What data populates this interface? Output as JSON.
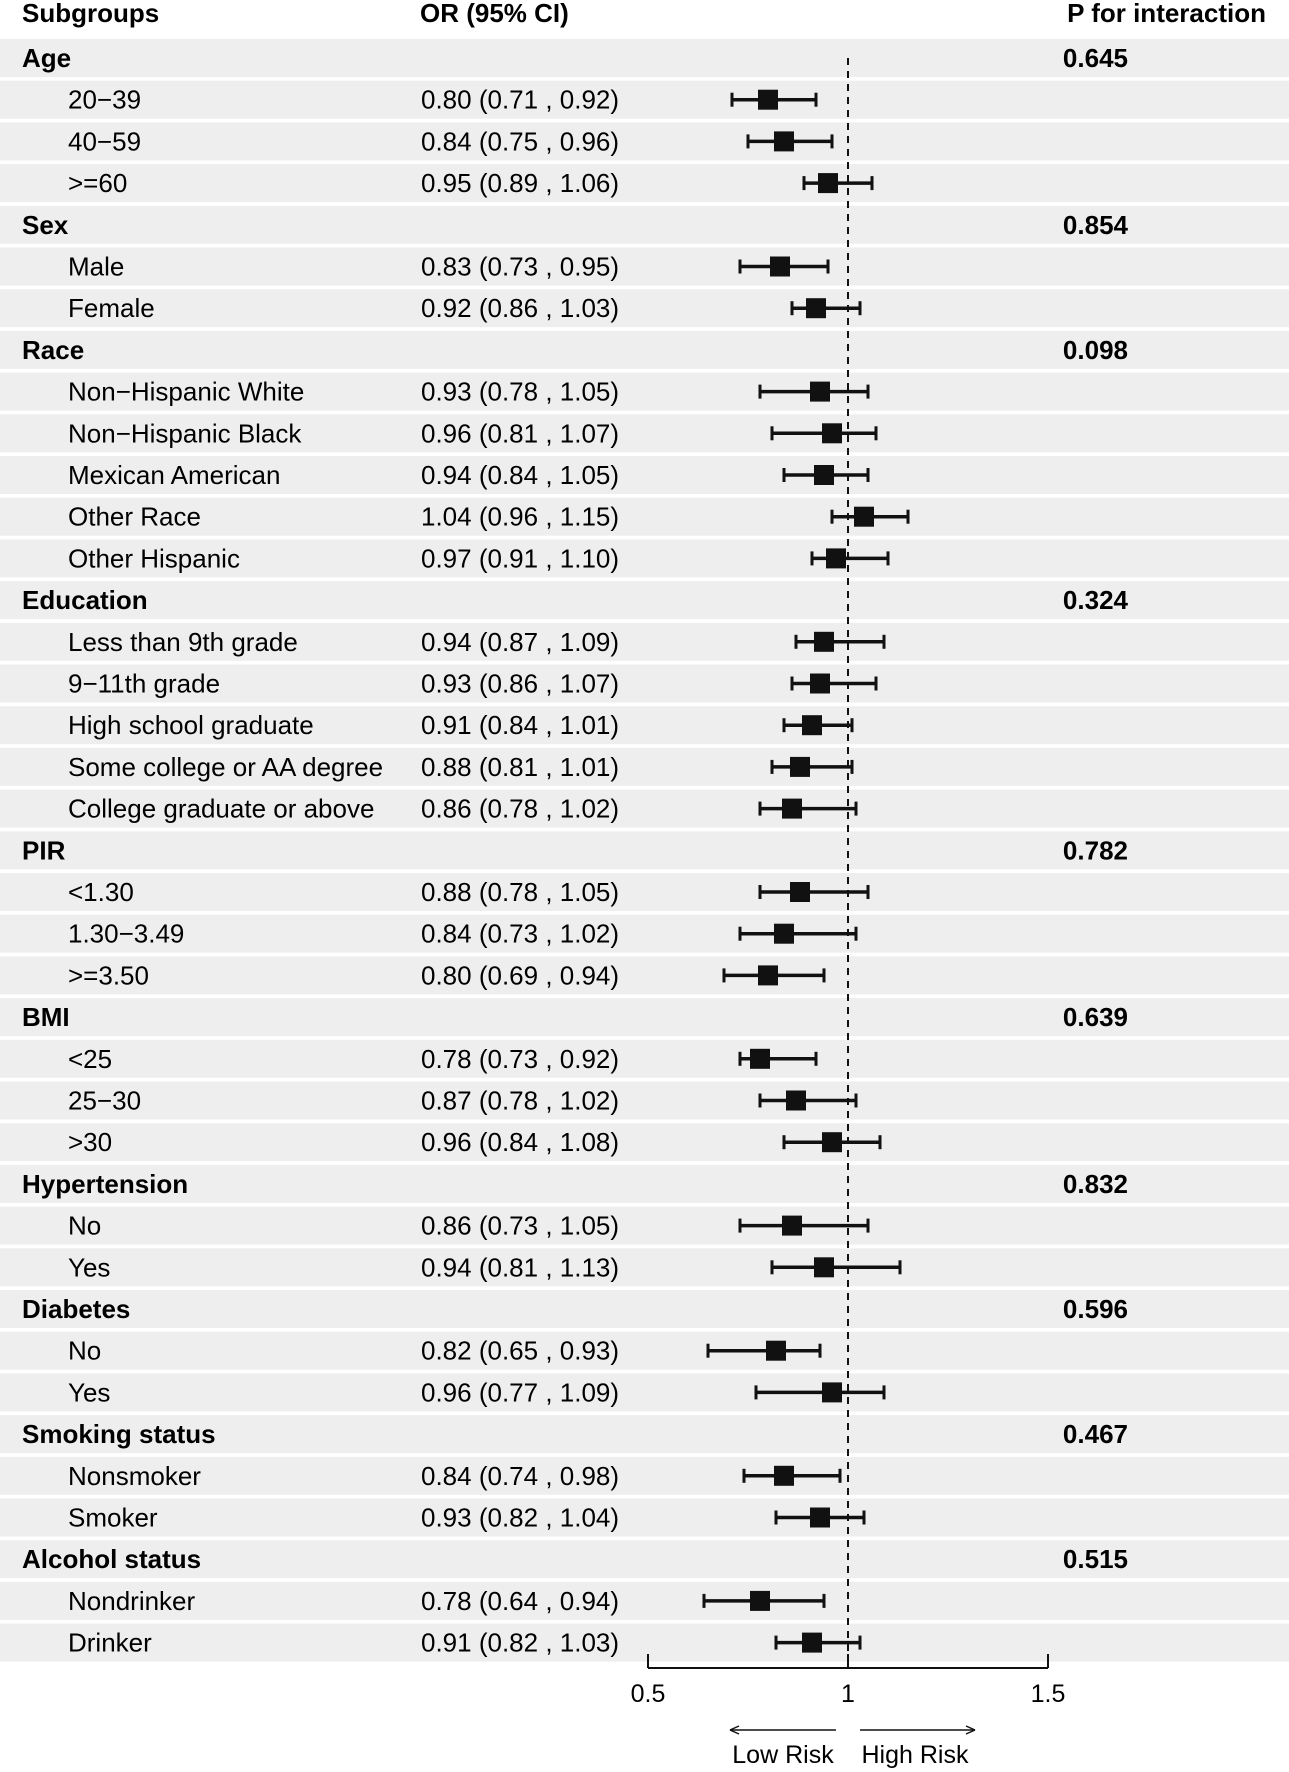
{
  "headers": {
    "subgroups": "Subgroups",
    "or_ci": "OR (95% CI)",
    "p_interaction": "P for interaction"
  },
  "axis": {
    "ticks": [
      "0.5",
      "1",
      "1.5"
    ],
    "low_risk": "Low Risk",
    "high_risk": "High Risk"
  },
  "chart_data": {
    "type": "forest",
    "xlim": [
      0.5,
      1.5
    ],
    "reference_line": 1,
    "xticks": [
      0.5,
      1,
      1.5
    ],
    "groups": [
      {
        "name": "Age",
        "p": "0.645",
        "rows": [
          {
            "label": "20−39",
            "or": 0.8,
            "lo": 0.71,
            "hi": 0.92,
            "text": "0.80 (0.71 , 0.92)"
          },
          {
            "label": "40−59",
            "or": 0.84,
            "lo": 0.75,
            "hi": 0.96,
            "text": "0.84 (0.75 , 0.96)"
          },
          {
            "label": ">=60",
            "or": 0.95,
            "lo": 0.89,
            "hi": 1.06,
            "text": "0.95 (0.89 , 1.06)"
          }
        ]
      },
      {
        "name": "Sex",
        "p": "0.854",
        "rows": [
          {
            "label": "Male",
            "or": 0.83,
            "lo": 0.73,
            "hi": 0.95,
            "text": "0.83 (0.73 , 0.95)"
          },
          {
            "label": "Female",
            "or": 0.92,
            "lo": 0.86,
            "hi": 1.03,
            "text": "0.92 (0.86 , 1.03)"
          }
        ]
      },
      {
        "name": "Race",
        "p": "0.098",
        "rows": [
          {
            "label": "Non−Hispanic White",
            "or": 0.93,
            "lo": 0.78,
            "hi": 1.05,
            "text": "0.93 (0.78 , 1.05)"
          },
          {
            "label": "Non−Hispanic Black",
            "or": 0.96,
            "lo": 0.81,
            "hi": 1.07,
            "text": "0.96 (0.81 , 1.07)"
          },
          {
            "label": "Mexican American",
            "or": 0.94,
            "lo": 0.84,
            "hi": 1.05,
            "text": "0.94 (0.84 , 1.05)"
          },
          {
            "label": "Other Race",
            "or": 1.04,
            "lo": 0.96,
            "hi": 1.15,
            "text": "1.04 (0.96 , 1.15)"
          },
          {
            "label": "Other Hispanic",
            "or": 0.97,
            "lo": 0.91,
            "hi": 1.1,
            "text": "0.97 (0.91 , 1.10)"
          }
        ]
      },
      {
        "name": "Education",
        "p": "0.324",
        "rows": [
          {
            "label": "Less than 9th grade",
            "or": 0.94,
            "lo": 0.87,
            "hi": 1.09,
            "text": "0.94 (0.87 , 1.09)"
          },
          {
            "label": "9−11th grade",
            "or": 0.93,
            "lo": 0.86,
            "hi": 1.07,
            "text": "0.93 (0.86 , 1.07)"
          },
          {
            "label": "High school graduate",
            "or": 0.91,
            "lo": 0.84,
            "hi": 1.01,
            "text": "0.91 (0.84 , 1.01)"
          },
          {
            "label": "Some college or AA degree",
            "or": 0.88,
            "lo": 0.81,
            "hi": 1.01,
            "text": "0.88 (0.81 , 1.01)"
          },
          {
            "label": "College graduate or above",
            "or": 0.86,
            "lo": 0.78,
            "hi": 1.02,
            "text": "0.86 (0.78 , 1.02)"
          }
        ]
      },
      {
        "name": "PIR",
        "p": "0.782",
        "rows": [
          {
            "label": "<1.30",
            "or": 0.88,
            "lo": 0.78,
            "hi": 1.05,
            "text": "0.88 (0.78 , 1.05)"
          },
          {
            "label": "1.30−3.49",
            "or": 0.84,
            "lo": 0.73,
            "hi": 1.02,
            "text": "0.84 (0.73 , 1.02)"
          },
          {
            "label": ">=3.50",
            "or": 0.8,
            "lo": 0.69,
            "hi": 0.94,
            "text": "0.80 (0.69 , 0.94)"
          }
        ]
      },
      {
        "name": "BMI",
        "p": "0.639",
        "rows": [
          {
            "label": "<25",
            "or": 0.78,
            "lo": 0.73,
            "hi": 0.92,
            "text": "0.78 (0.73 , 0.92)"
          },
          {
            "label": "25−30",
            "or": 0.87,
            "lo": 0.78,
            "hi": 1.02,
            "text": "0.87 (0.78 , 1.02)"
          },
          {
            "label": ">30",
            "or": 0.96,
            "lo": 0.84,
            "hi": 1.08,
            "text": "0.96 (0.84 , 1.08)"
          }
        ]
      },
      {
        "name": "Hypertension",
        "p": "0.832",
        "rows": [
          {
            "label": "No",
            "or": 0.86,
            "lo": 0.73,
            "hi": 1.05,
            "text": "0.86 (0.73 , 1.05)"
          },
          {
            "label": "Yes",
            "or": 0.94,
            "lo": 0.81,
            "hi": 1.13,
            "text": "0.94 (0.81 , 1.13)"
          }
        ]
      },
      {
        "name": "Diabetes",
        "p": "0.596",
        "rows": [
          {
            "label": "No",
            "or": 0.82,
            "lo": 0.65,
            "hi": 0.93,
            "text": "0.82 (0.65 , 0.93)"
          },
          {
            "label": "Yes",
            "or": 0.96,
            "lo": 0.77,
            "hi": 1.09,
            "text": "0.96 (0.77 , 1.09)"
          }
        ]
      },
      {
        "name": "Smoking status",
        "p": "0.467",
        "rows": [
          {
            "label": "Nonsmoker",
            "or": 0.84,
            "lo": 0.74,
            "hi": 0.98,
            "text": "0.84 (0.74 , 0.98)"
          },
          {
            "label": "Smoker",
            "or": 0.93,
            "lo": 0.82,
            "hi": 1.04,
            "text": "0.93 (0.82 , 1.04)"
          }
        ]
      },
      {
        "name": "Alcohol status",
        "p": "0.515",
        "rows": [
          {
            "label": "Nondrinker",
            "or": 0.78,
            "lo": 0.64,
            "hi": 0.94,
            "text": "0.78 (0.64 , 0.94)"
          },
          {
            "label": "Drinker",
            "or": 0.91,
            "lo": 0.82,
            "hi": 1.03,
            "text": "0.91 (0.82 , 1.03)"
          }
        ]
      }
    ]
  }
}
